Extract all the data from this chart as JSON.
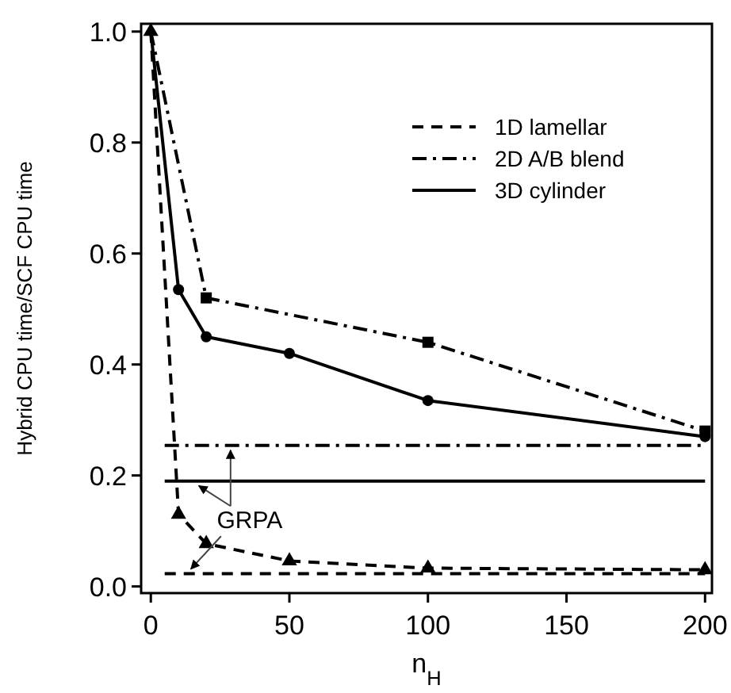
{
  "chart_data": {
    "type": "line",
    "xlabel": "n$_{H}$",
    "ylabel": "Hybrid CPU time/SCF CPU time",
    "xlim": [
      -3.5,
      202.5
    ],
    "ylim": [
      -0.012,
      1.014
    ],
    "xticks": [
      0,
      50,
      100,
      150,
      200
    ],
    "yticks": [
      {
        "value": 0,
        "label": "0.0"
      },
      {
        "value": 0.2,
        "label": "0.2"
      },
      {
        "value": 0.4,
        "label": "0.4"
      },
      {
        "value": 0.6,
        "label": "0.6"
      },
      {
        "value": 0.8,
        "label": "0.8"
      },
      {
        "value": 1,
        "label": "1.0"
      }
    ],
    "legend": "top right",
    "grid": false,
    "series": [
      {
        "name": "1D lamellar",
        "color": "#000000",
        "line_style": "dashed",
        "marker": "triangle",
        "x": [
          0,
          10,
          20,
          50,
          100,
          200
        ],
        "values": [
          1.0,
          0.13,
          0.077,
          0.046,
          0.033,
          0.03
        ]
      },
      {
        "name": "2D A/B blend",
        "color": "#000000",
        "line_style": "dashdot",
        "marker": "square",
        "x": [
          0,
          20,
          100,
          200
        ],
        "values": [
          1.0,
          0.52,
          0.44,
          0.28
        ]
      },
      {
        "name": "3D cylinder",
        "color": "#000000",
        "line_style": "solid",
        "marker": "circle",
        "x": [
          0,
          10,
          20,
          50,
          100,
          200
        ],
        "values": [
          1.0,
          0.535,
          0.45,
          0.42,
          0.335,
          0.27
        ]
      },
      {
        "color": "#000000",
        "line_style": "dashed",
        "marker": "none",
        "x": [
          5,
          200
        ],
        "values": [
          0.023,
          0.023
        ]
      },
      {
        "color": "#000000",
        "line_style": "dashdot",
        "marker": "none",
        "x": [
          5,
          200
        ],
        "values": [
          0.254,
          0.254
        ]
      },
      {
        "color": "#000000",
        "line_style": "solid",
        "marker": "none",
        "x": [
          5,
          200
        ],
        "values": [
          0.19,
          0.19
        ]
      }
    ],
    "annotations": [
      "GRPA"
    ]
  }
}
